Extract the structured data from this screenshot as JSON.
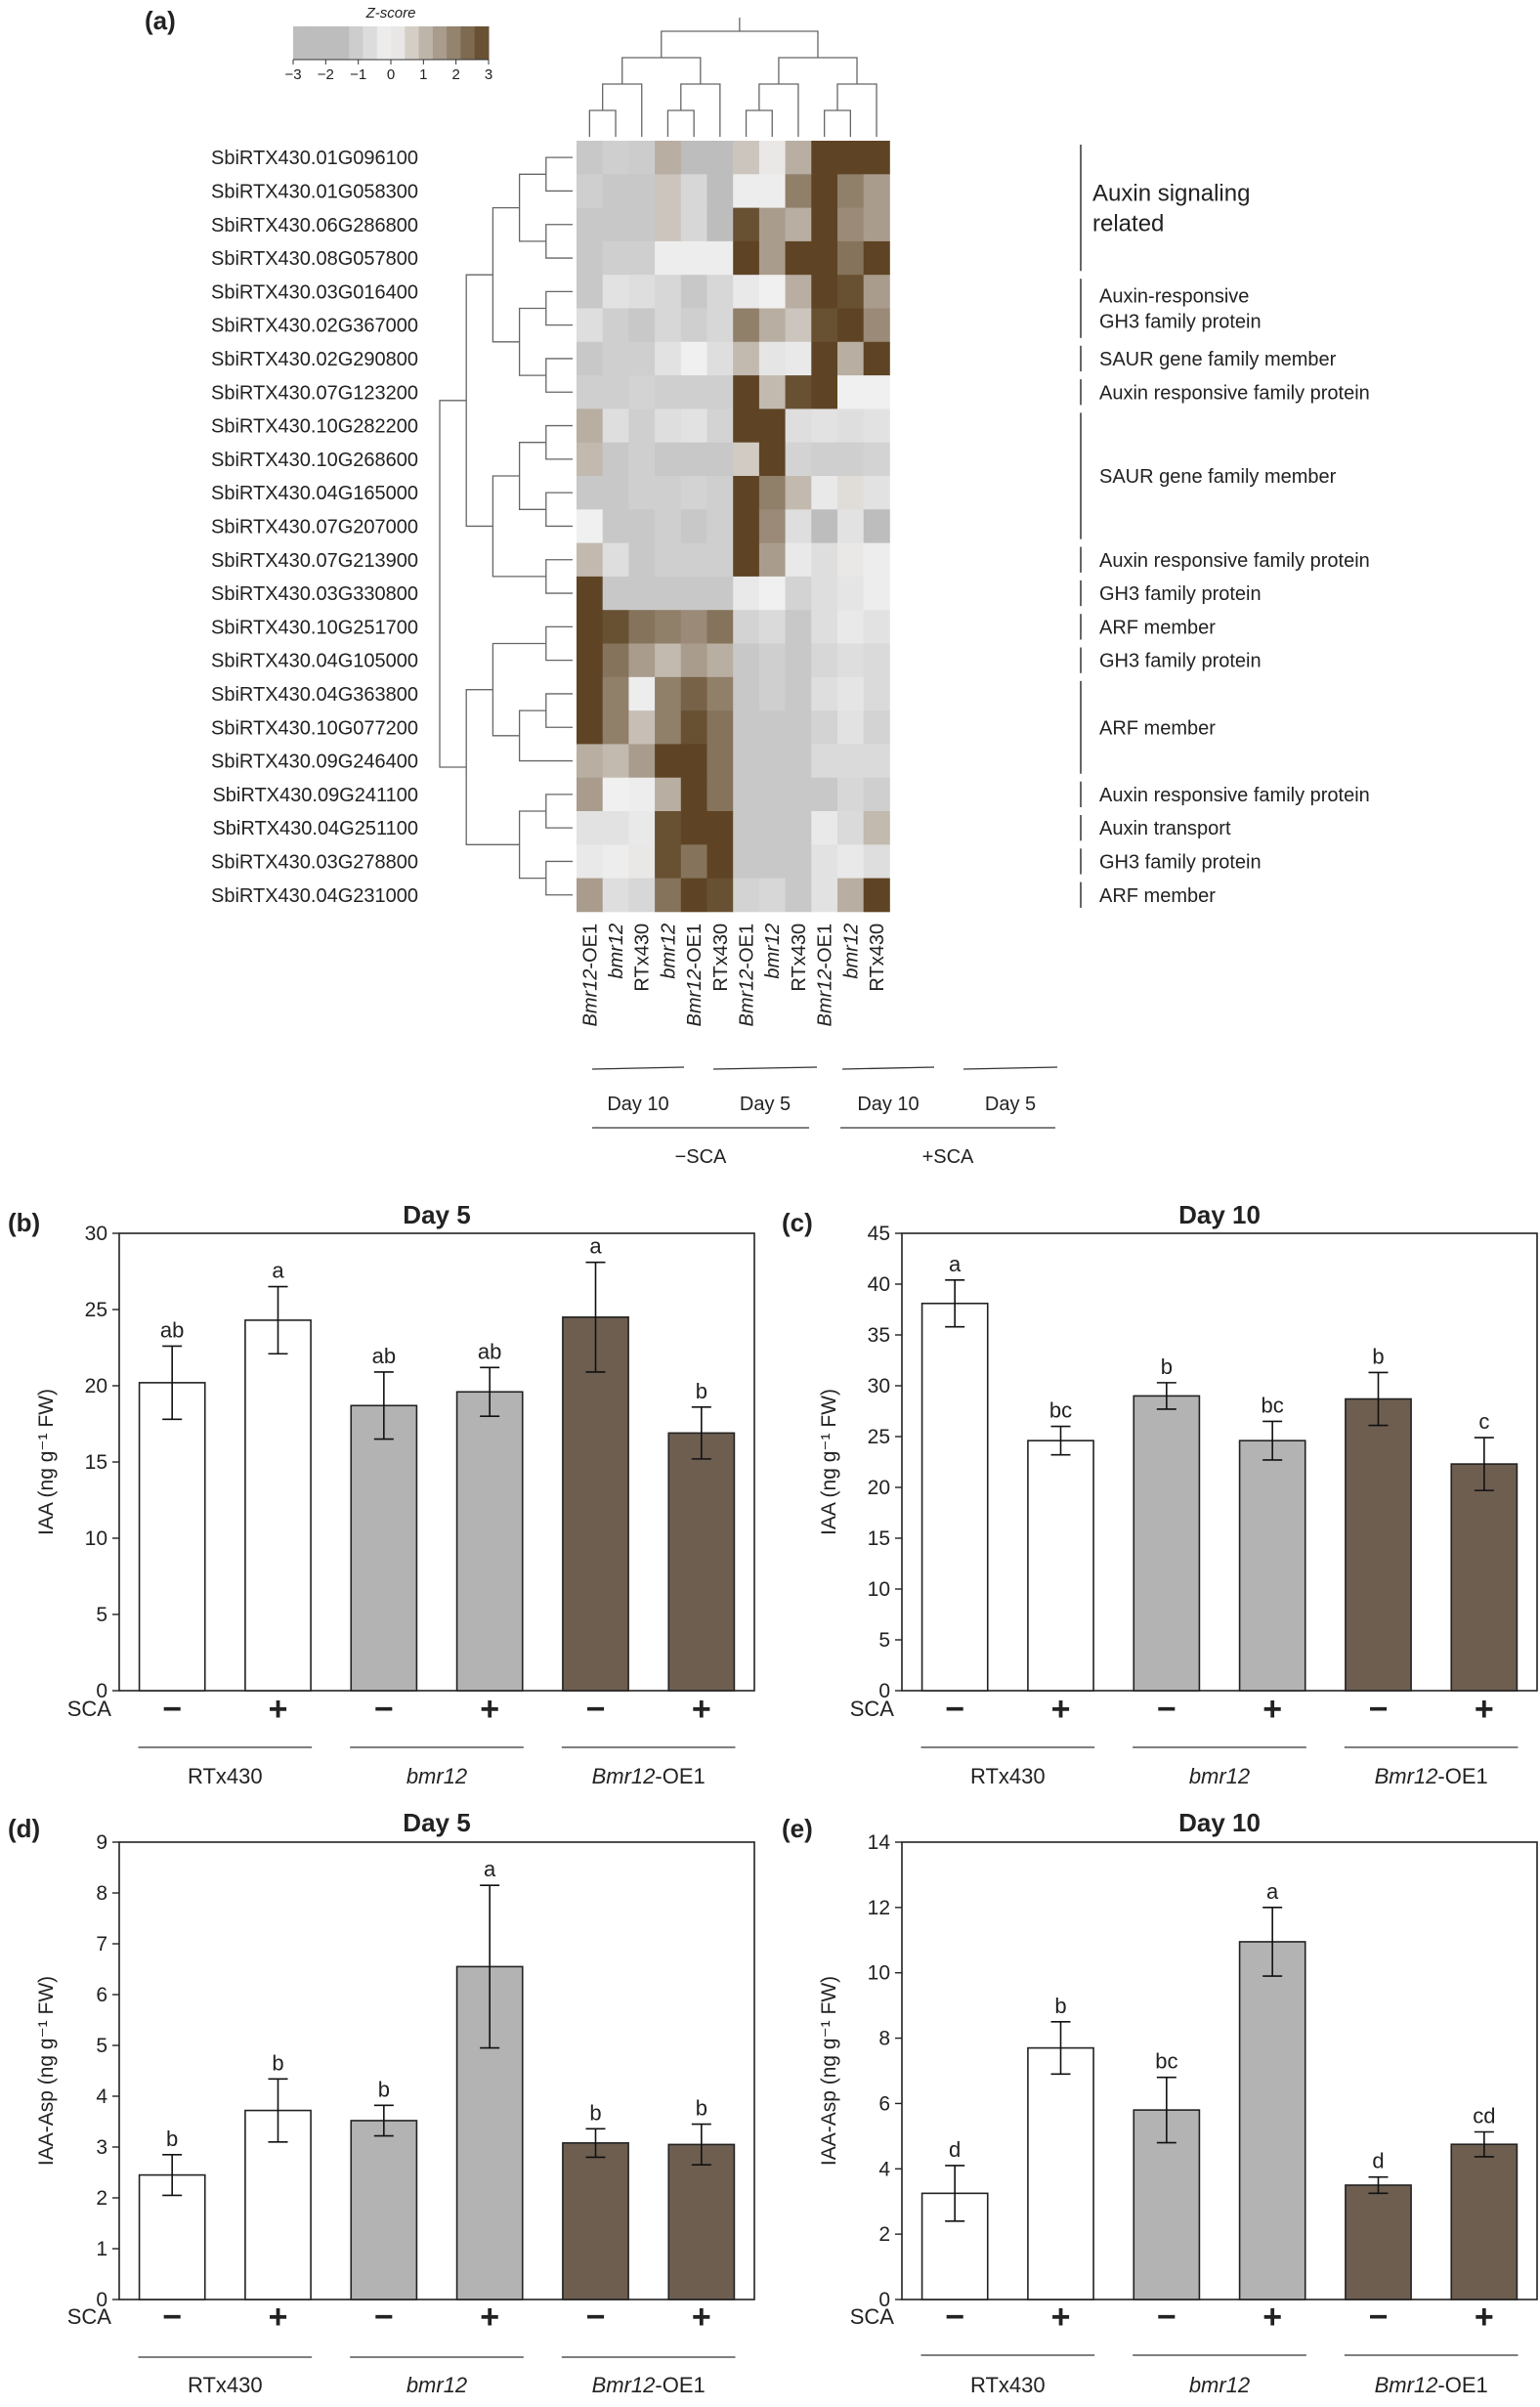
{
  "panel_labels": [
    "(a)",
    "(b)",
    "(c)",
    "(d)",
    "(e)"
  ],
  "colors": {
    "rtx430": "#ffffff",
    "bmr12": "#b3b3b3",
    "oe1": "#6e5e50",
    "heat_neg": "#bdbdbd",
    "heat_mid": "#f4f4f4",
    "heat_pos": "#5e4424"
  },
  "heatmap": {
    "legend_title": "Z-score",
    "legend_ticks": [
      "−3",
      "−2",
      "−1",
      "0",
      "1",
      "2",
      "3"
    ],
    "genes": [
      "SbiRTX430.01G096100",
      "SbiRTX430.01G058300",
      "SbiRTX430.06G286800",
      "SbiRTX430.08G057800",
      "SbiRTX430.03G016400",
      "SbiRTX430.02G367000",
      "SbiRTX430.02G290800",
      "SbiRTX430.07G123200",
      "SbiRTX430.10G282200",
      "SbiRTX430.10G268600",
      "SbiRTX430.04G165000",
      "SbiRTX430.07G207000",
      "SbiRTX430.07G213900",
      "SbiRTX430.03G330800",
      "SbiRTX430.10G251700",
      "SbiRTX430.04G105000",
      "SbiRTX430.04G363800",
      "SbiRTX430.10G077200",
      "SbiRTX430.09G246400",
      "SbiRTX430.09G241100",
      "SbiRTX430.04G251100",
      "SbiRTX430.03G278800",
      "SbiRTX430.04G231000"
    ],
    "columns": [
      {
        "label": "Bmr12",
        "suffix": "-OE1",
        "italic": true
      },
      {
        "label": "bmr12",
        "suffix": "",
        "italic": true
      },
      {
        "label": "RTx430",
        "suffix": "",
        "italic": false
      },
      {
        "label": "bmr12",
        "suffix": "",
        "italic": true
      },
      {
        "label": "Bmr12",
        "suffix": "-OE1",
        "italic": true
      },
      {
        "label": "RTx430",
        "suffix": "",
        "italic": false
      },
      {
        "label": "Bmr12",
        "suffix": "-OE1",
        "italic": true
      },
      {
        "label": "bmr12",
        "suffix": "",
        "italic": true
      },
      {
        "label": "RTx430",
        "suffix": "",
        "italic": false
      },
      {
        "label": "Bmr12",
        "suffix": "-OE1",
        "italic": true
      },
      {
        "label": "bmr12",
        "suffix": "",
        "italic": true
      },
      {
        "label": "RTx430",
        "suffix": "",
        "italic": false
      }
    ],
    "day_groups": [
      "Day 10",
      "Day 5",
      "Day 10",
      "Day 5"
    ],
    "treatment_groups": [
      "−SCA",
      "+SCA"
    ],
    "annotations": [
      {
        "text": [
          "Auxin signaling",
          "related"
        ],
        "rows": [
          0,
          3
        ],
        "big": true
      },
      {
        "text": [
          "Auxin-responsive",
          "GH3 family protein"
        ],
        "rows": [
          4,
          5
        ]
      },
      {
        "text": [
          "SAUR gene family member"
        ],
        "rows": [
          6,
          6
        ]
      },
      {
        "text": [
          "Auxin responsive family protein"
        ],
        "rows": [
          7,
          7
        ]
      },
      {
        "text": [
          "SAUR gene family member"
        ],
        "rows": [
          8,
          11
        ]
      },
      {
        "text": [
          "Auxin responsive family protein"
        ],
        "rows": [
          12,
          12
        ]
      },
      {
        "text": [
          "GH3 family protein"
        ],
        "rows": [
          13,
          13
        ]
      },
      {
        "text": [
          "ARF member"
        ],
        "rows": [
          14,
          14
        ]
      },
      {
        "text": [
          "GH3 family protein"
        ],
        "rows": [
          15,
          15
        ]
      },
      {
        "text": [
          "ARF member"
        ],
        "rows": [
          16,
          18
        ]
      },
      {
        "text": [
          "Auxin responsive family protein"
        ],
        "rows": [
          19,
          19
        ]
      },
      {
        "text": [
          "Auxin transport"
        ],
        "rows": [
          20,
          20
        ]
      },
      {
        "text": [
          "GH3 family protein"
        ],
        "rows": [
          21,
          21
        ]
      },
      {
        "text": [
          "ARF member"
        ],
        "rows": [
          22,
          22
        ]
      }
    ],
    "values": [
      [
        -1.2,
        -1.0,
        -1.1,
        1.2,
        -3.0,
        -1.5,
        0.8,
        0.2,
        1.2,
        3.0,
        3.0,
        3.0
      ],
      [
        -1.0,
        -1.2,
        -1.2,
        0.8,
        -0.8,
        -1.5,
        -0.2,
        -0.2,
        2.0,
        3.0,
        2.0,
        1.5
      ],
      [
        -1.2,
        -1.2,
        -1.2,
        0.8,
        -0.8,
        -1.5,
        2.8,
        1.5,
        1.2,
        3.0,
        1.8,
        1.5
      ],
      [
        -1.2,
        -1.0,
        -1.0,
        -0.2,
        -0.2,
        -0.2,
        3.0,
        1.5,
        3.0,
        3.0,
        2.2,
        3.0
      ],
      [
        -1.2,
        -0.5,
        -0.6,
        -0.8,
        -1.2,
        -0.8,
        -0.3,
        -0.1,
        1.2,
        3.0,
        2.8,
        1.5
      ],
      [
        -0.6,
        -1.0,
        -1.2,
        -0.8,
        -1.0,
        -0.8,
        2.0,
        1.2,
        0.8,
        2.8,
        3.0,
        1.8
      ],
      [
        -1.2,
        -1.0,
        -1.0,
        -0.5,
        -0.1,
        -0.6,
        1.0,
        -0.4,
        -0.3,
        3.0,
        1.2,
        3.0
      ],
      [
        -1.0,
        -1.0,
        -0.9,
        -1.0,
        -1.0,
        -1.0,
        3.0,
        1.0,
        2.8,
        3.0,
        -0.1,
        -0.1
      ],
      [
        1.2,
        -0.6,
        -1.0,
        -0.6,
        -0.5,
        -0.9,
        3.0,
        3.0,
        -0.6,
        -0.5,
        -0.6,
        -0.5
      ],
      [
        1.0,
        -1.2,
        -1.0,
        -1.2,
        -1.2,
        -1.2,
        0.7,
        3.0,
        -0.9,
        -1.0,
        -1.0,
        -0.9
      ],
      [
        -1.2,
        -1.2,
        -1.0,
        -1.0,
        -0.9,
        -1.0,
        3.0,
        2.0,
        1.0,
        -0.3,
        0.4,
        -0.5
      ],
      [
        -0.1,
        -1.2,
        -1.2,
        -1.0,
        -1.2,
        -1.0,
        3.0,
        1.8,
        -0.6,
        -1.5,
        -0.5,
        -1.5
      ],
      [
        1.0,
        -0.6,
        -1.2,
        -1.0,
        -1.0,
        -1.0,
        3.0,
        1.5,
        -0.3,
        -0.6,
        0.2,
        -0.2
      ],
      [
        3.0,
        -1.2,
        -1.2,
        -1.2,
        -1.2,
        -1.2,
        -0.3,
        -0.1,
        -0.9,
        -0.6,
        -0.4,
        -0.2
      ],
      [
        3.0,
        2.8,
        2.2,
        2.0,
        1.8,
        2.2,
        -0.9,
        -0.7,
        -1.2,
        -0.6,
        -0.3,
        -0.5
      ],
      [
        3.0,
        2.2,
        1.5,
        1.0,
        1.5,
        1.2,
        -1.2,
        -1.0,
        -1.2,
        -0.8,
        -0.6,
        -0.7
      ],
      [
        3.0,
        2.0,
        -0.2,
        2.0,
        2.5,
        2.0,
        -1.2,
        -1.0,
        -1.2,
        -0.6,
        -0.4,
        -0.7
      ],
      [
        3.0,
        2.0,
        0.9,
        2.0,
        2.8,
        2.2,
        -1.2,
        -1.2,
        -1.2,
        -0.9,
        -0.5,
        -0.9
      ],
      [
        1.2,
        1.0,
        1.5,
        3.0,
        3.0,
        2.2,
        -1.2,
        -1.2,
        -1.2,
        -0.7,
        -0.7,
        -0.7
      ],
      [
        1.5,
        -0.1,
        -0.2,
        1.2,
        3.0,
        2.2,
        -1.2,
        -1.2,
        -1.2,
        -1.2,
        -0.8,
        -1.0
      ],
      [
        -0.5,
        -0.5,
        -0.3,
        2.8,
        3.0,
        3.0,
        -1.2,
        -1.2,
        -1.2,
        -0.3,
        -0.7,
        1.0
      ],
      [
        -0.3,
        -0.2,
        0.2,
        2.8,
        2.2,
        3.0,
        -1.2,
        -1.2,
        -1.2,
        -0.5,
        -0.3,
        -0.6
      ],
      [
        1.5,
        -0.6,
        -0.8,
        2.2,
        3.0,
        2.8,
        -0.9,
        -0.8,
        -1.2,
        -0.5,
        1.2,
        3.0
      ]
    ]
  },
  "chart_data": [
    {
      "panel": "(b)",
      "type": "bar",
      "title": "Day 5",
      "ylabel": "IAA (ng g⁻¹ FW)",
      "ylim": [
        0,
        30
      ],
      "yticks": [
        0,
        5,
        10,
        15,
        20,
        25,
        30
      ],
      "categories": [
        "RTx430 −",
        "RTx430 +",
        "bmr12 −",
        "bmr12 +",
        "Bmr12-OE1 −",
        "Bmr12-OE1 +"
      ],
      "values": [
        20.2,
        24.3,
        18.7,
        19.6,
        24.5,
        16.9
      ],
      "errors": [
        2.4,
        2.2,
        2.2,
        1.6,
        3.6,
        1.7
      ],
      "letters": [
        "ab",
        "a",
        "ab",
        "ab",
        "a",
        "b"
      ],
      "genotypes": [
        "RTx430",
        "bmr12",
        "Bmr12-OE1"
      ],
      "sca_row_label": "SCA",
      "sca_signs": [
        "−",
        "+",
        "−",
        "+",
        "−",
        "+"
      ]
    },
    {
      "panel": "(c)",
      "type": "bar",
      "title": "Day 10",
      "ylabel": "IAA (ng g⁻¹ FW)",
      "ylim": [
        0,
        45
      ],
      "yticks": [
        0,
        5,
        10,
        15,
        20,
        25,
        30,
        35,
        40,
        45
      ],
      "categories": [
        "RTx430 −",
        "RTx430 +",
        "bmr12 −",
        "bmr12 +",
        "Bmr12-OE1 −",
        "Bmr12-OE1 +"
      ],
      "values": [
        38.1,
        24.6,
        29.0,
        24.6,
        28.7,
        22.3
      ],
      "errors": [
        2.3,
        1.4,
        1.3,
        1.9,
        2.6,
        2.6
      ],
      "letters": [
        "a",
        "bc",
        "b",
        "bc",
        "b",
        "c"
      ],
      "genotypes": [
        "RTx430",
        "bmr12",
        "Bmr12-OE1"
      ],
      "sca_row_label": "SCA",
      "sca_signs": [
        "−",
        "+",
        "−",
        "+",
        "−",
        "+"
      ]
    },
    {
      "panel": "(d)",
      "type": "bar",
      "title": "Day 5",
      "ylabel": "IAA-Asp (ng g⁻¹ FW)",
      "ylim": [
        0,
        9
      ],
      "yticks": [
        0,
        1,
        2,
        3,
        4,
        5,
        6,
        7,
        8,
        9
      ],
      "categories": [
        "RTx430 −",
        "RTx430 +",
        "bmr12 −",
        "bmr12 +",
        "Bmr12-OE1 −",
        "Bmr12-OE1 +"
      ],
      "values": [
        2.45,
        3.72,
        3.52,
        6.55,
        3.08,
        3.05
      ],
      "errors": [
        0.4,
        0.62,
        0.3,
        1.6,
        0.28,
        0.4
      ],
      "letters": [
        "b",
        "b",
        "b",
        "a",
        "b",
        "b"
      ],
      "genotypes": [
        "RTx430",
        "bmr12",
        "Bmr12-OE1"
      ],
      "sca_row_label": "SCA",
      "sca_signs": [
        "−",
        "+",
        "−",
        "+",
        "−",
        "+"
      ]
    },
    {
      "panel": "(e)",
      "type": "bar",
      "title": "Day 10",
      "ylabel": "IAA-Asp (ng g⁻¹ FW)",
      "ylim": [
        0,
        14
      ],
      "yticks": [
        0,
        2,
        4,
        6,
        8,
        10,
        12,
        14
      ],
      "categories": [
        "RTx430 −",
        "RTx430 +",
        "bmr12 −",
        "bmr12 +",
        "Bmr12-OE1 −",
        "Bmr12-OE1 +"
      ],
      "values": [
        3.25,
        7.7,
        5.8,
        10.95,
        3.5,
        4.75
      ],
      "errors": [
        0.85,
        0.8,
        1.0,
        1.05,
        0.25,
        0.38
      ],
      "letters": [
        "d",
        "b",
        "bc",
        "a",
        "d",
        "cd"
      ],
      "genotypes": [
        "RTx430",
        "bmr12",
        "Bmr12-OE1"
      ],
      "sca_row_label": "SCA",
      "sca_signs": [
        "−",
        "+",
        "−",
        "+",
        "−",
        "+"
      ]
    }
  ]
}
